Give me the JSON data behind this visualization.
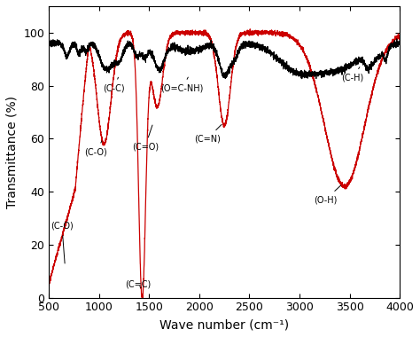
{
  "xlim": [
    500,
    4000
  ],
  "ylim": [
    0,
    110
  ],
  "xlabel": "Wave number (cm⁻¹)",
  "ylabel": "Transmittance (%)",
  "yticks": [
    0,
    20,
    40,
    60,
    80,
    100
  ],
  "xticks": [
    500,
    1000,
    1500,
    2000,
    2500,
    3000,
    3500,
    4000
  ],
  "black_color": "#000000",
  "red_color": "#cc0000"
}
